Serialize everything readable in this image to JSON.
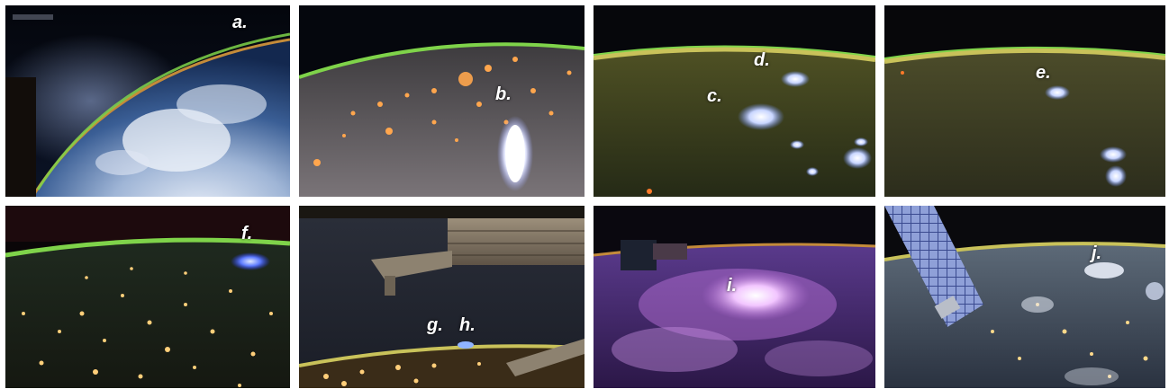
{
  "figure": {
    "panels": [
      {
        "id": "a",
        "labels": [
          "a."
        ],
        "scene": "earth-limb-daylight-clouds"
      },
      {
        "id": "b",
        "labels": [
          "b."
        ],
        "scene": "city-lights-with-lightning-flash"
      },
      {
        "id": "cd",
        "labels": [
          "c.",
          "d."
        ],
        "scene": "airglow-limb-with-blue-flashes"
      },
      {
        "id": "e",
        "labels": [
          "e."
        ],
        "scene": "airglow-limb-with-blue-flash"
      },
      {
        "id": "f",
        "labels": [
          "f."
        ],
        "scene": "city-lights-with-blue-flash"
      },
      {
        "id": "gh",
        "labels": [
          "g.",
          "h."
        ],
        "scene": "station-structure-over-horizon"
      },
      {
        "id": "i",
        "labels": [
          "i."
        ],
        "scene": "purple-clouds-with-flash"
      },
      {
        "id": "j",
        "labels": [
          "j."
        ],
        "scene": "solar-panel-city-lights"
      }
    ],
    "colors": {
      "airglow_green": "#7fd34a",
      "airglow_yellow": "#c9c25a",
      "flash_blue": "#8fb3ff",
      "city_orange": "#ffa64d",
      "lightning_purple": "#b56fd6"
    }
  }
}
